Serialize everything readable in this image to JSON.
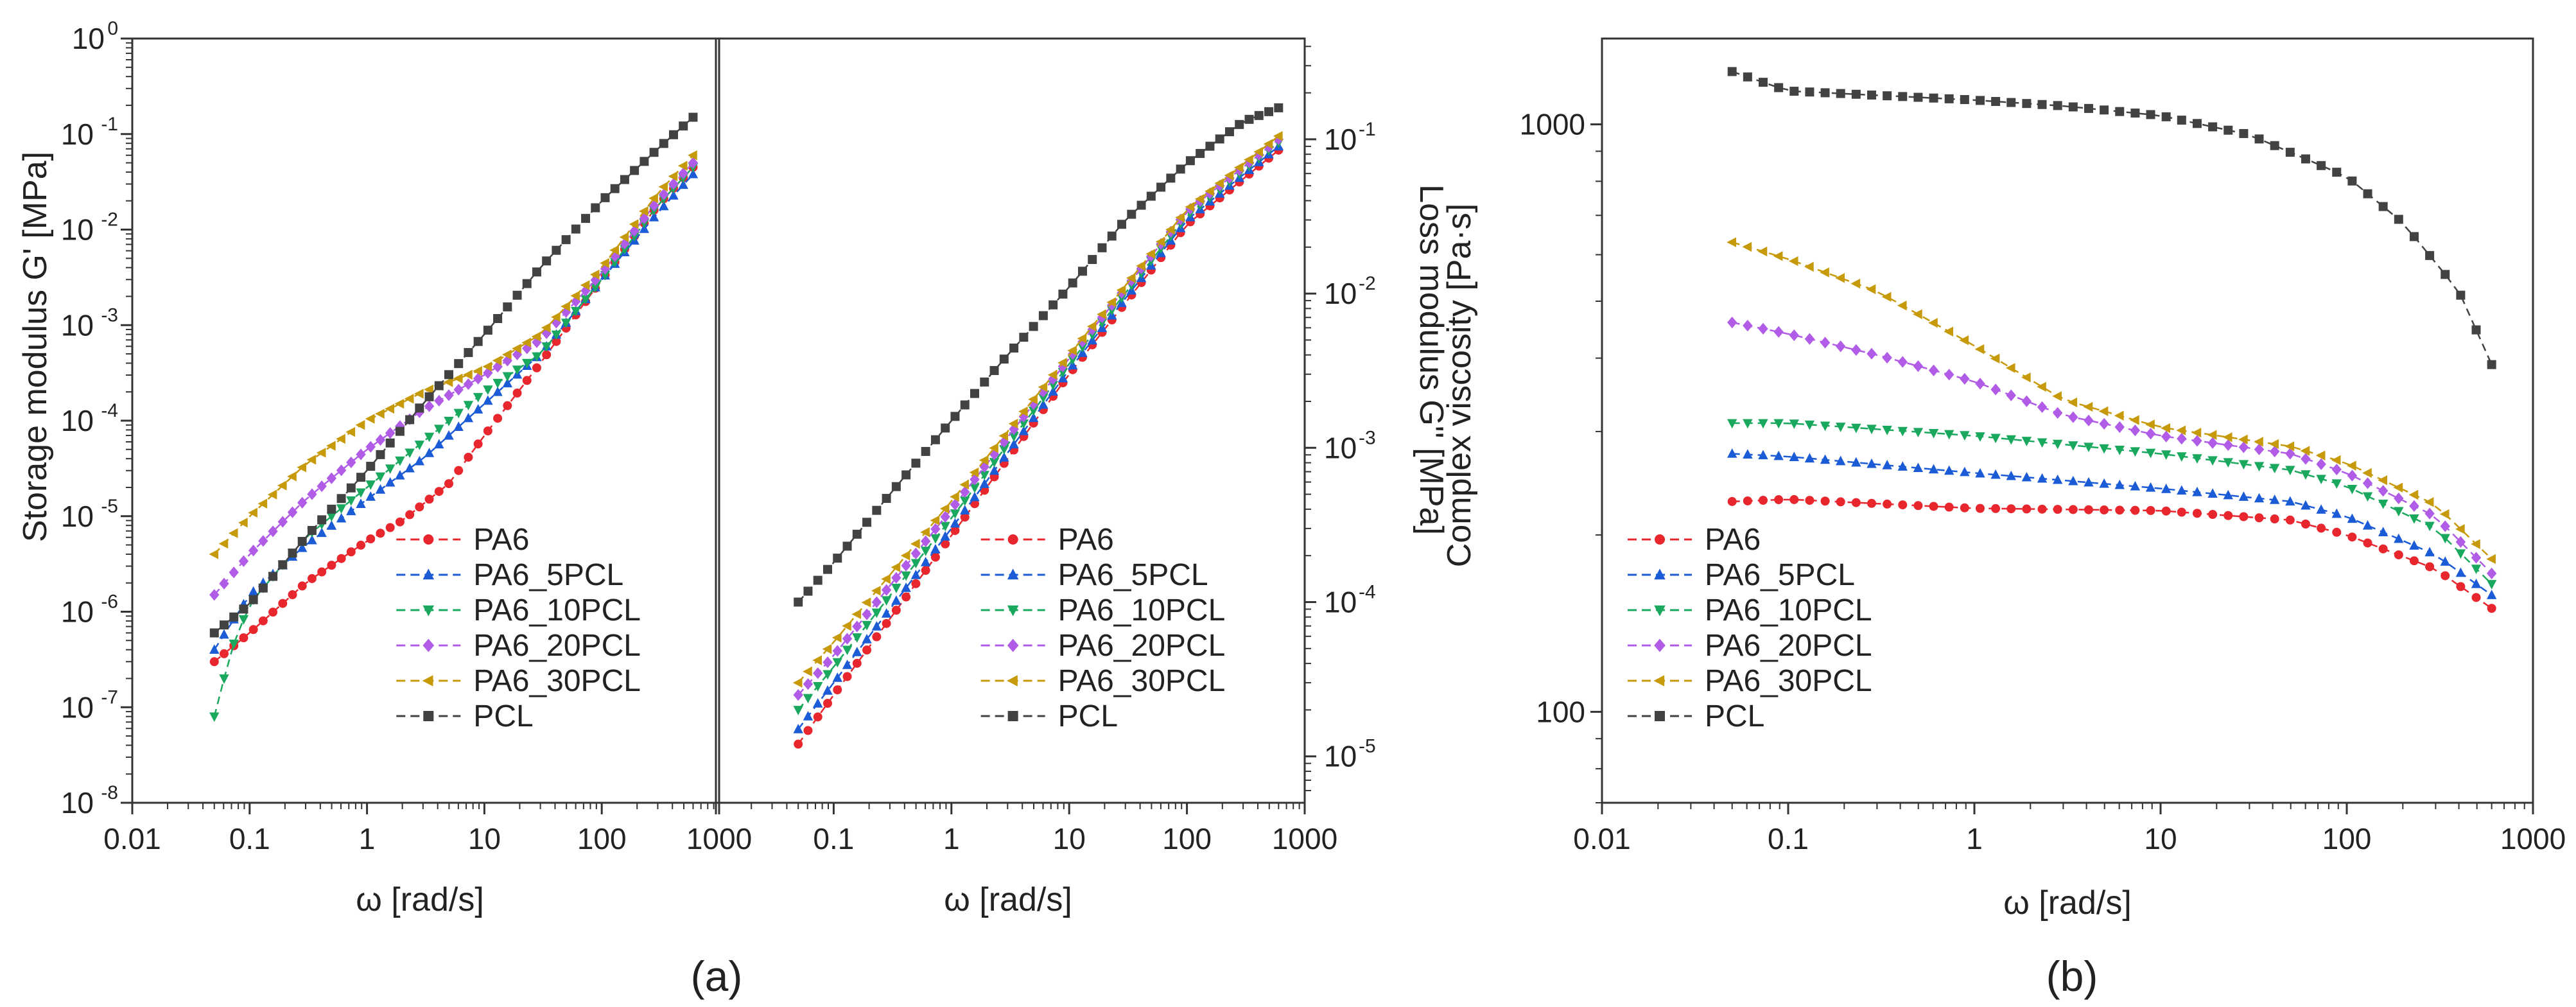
{
  "figure": {
    "panel_a_label": "(a)",
    "panel_b_label": "(b)"
  },
  "colors": {
    "PA6": "#e8262e",
    "PA6_5PCL": "#1c5bd6",
    "PA6_10PCL": "#1aa85e",
    "PA6_20PCL": "#b05ce6",
    "PA6_30PCL": "#c79a0c",
    "PCL": "#424242"
  },
  "chart_data": [
    {
      "id": "a-left",
      "type": "line",
      "title": "",
      "xlabel": "ω [rad/s]",
      "ylabel": "Storage modulus G' [MPa]",
      "xscale": "log",
      "yscale": "log",
      "xlim": [
        0.01,
        1000
      ],
      "ylim": [
        1e-08,
        1
      ],
      "x_ticks": [
        "0.01",
        "0.1",
        "1",
        "10",
        "100",
        "1000"
      ],
      "y_ticks": [
        {
          "base": "10",
          "exp": "-8"
        },
        {
          "base": "10",
          "exp": "-7"
        },
        {
          "base": "10",
          "exp": "-6"
        },
        {
          "base": "10",
          "exp": "-5"
        },
        {
          "base": "10",
          "exp": "-4"
        },
        {
          "base": "10",
          "exp": "-3"
        },
        {
          "base": "10",
          "exp": "-2"
        },
        {
          "base": "10",
          "exp": "-1"
        },
        {
          "base": "10",
          "exp": "0"
        }
      ],
      "legend": [
        "PA6",
        "PA6_5PCL",
        "PA6_10PCL",
        "PA6_20PCL",
        "PA6_30PCL",
        "PCL"
      ],
      "legend_loc": "bottom-right",
      "series": [
        {
          "name": "PA6",
          "x": [
            0.05,
            0.1,
            0.3,
            1,
            2,
            5,
            10,
            30,
            100,
            300,
            600
          ],
          "y": [
            3e-07,
            6e-07,
            2e-06,
            5.5e-06,
            9e-06,
            2.2e-05,
            7e-05,
            0.0004,
            0.003,
            0.018,
            0.045
          ]
        },
        {
          "name": "PA6_5PCL",
          "x": [
            0.05,
            0.1,
            0.3,
            1,
            3,
            10,
            30,
            100,
            300,
            600
          ],
          "y": [
            4e-07,
            1.5e-06,
            5e-06,
            1.5e-05,
            4e-05,
            0.00015,
            0.0005,
            0.003,
            0.015,
            0.038
          ]
        },
        {
          "name": "PA6_10PCL",
          "x": [
            0.05,
            0.07,
            0.1,
            0.3,
            1,
            3,
            10,
            30,
            100,
            300,
            600
          ],
          "y": [
            8e-08,
            4e-07,
            1.2e-06,
            6e-06,
            2e-05,
            6e-05,
            0.0002,
            0.0005,
            0.003,
            0.018,
            0.045
          ]
        },
        {
          "name": "PA6_20PCL",
          "x": [
            0.05,
            0.1,
            0.3,
            1,
            3,
            10,
            30,
            100,
            300,
            600
          ],
          "y": [
            1.5e-06,
            4e-06,
            1.5e-05,
            5e-05,
            0.00013,
            0.0003,
            0.0007,
            0.0035,
            0.02,
            0.05
          ]
        },
        {
          "name": "PA6_30PCL",
          "x": [
            0.05,
            0.1,
            0.3,
            1,
            3,
            10,
            30,
            100,
            300,
            600
          ],
          "y": [
            4e-06,
            1e-05,
            3.5e-05,
            0.0001,
            0.0002,
            0.00035,
            0.0008,
            0.004,
            0.024,
            0.06
          ]
        },
        {
          "name": "PCL",
          "x": [
            0.05,
            0.1,
            0.3,
            1,
            3,
            10,
            30,
            100,
            300,
            600
          ],
          "y": [
            6e-07,
            1.2e-06,
            6e-06,
            3e-05,
            0.00015,
            0.0008,
            0.004,
            0.02,
            0.07,
            0.15
          ]
        }
      ]
    },
    {
      "id": "a-right",
      "type": "line",
      "title": "",
      "xlabel": "ω [rad/s]",
      "ylabel": "Loss modulus G'' [MPa]",
      "xscale": "log",
      "yscale": "log",
      "xlim": [
        0.01,
        1000
      ],
      "ylim": [
        5e-06,
        0.45
      ],
      "x_ticks": [
        "0.1",
        "1",
        "10",
        "100",
        "1000"
      ],
      "y_ticks": [
        {
          "base": "10",
          "exp": "-5"
        },
        {
          "base": "10",
          "exp": "-4"
        },
        {
          "base": "10",
          "exp": "-3"
        },
        {
          "base": "10",
          "exp": "-2"
        },
        {
          "base": "10",
          "exp": "-1"
        }
      ],
      "legend": [
        "PA6",
        "PA6_5PCL",
        "PA6_10PCL",
        "PA6_20PCL",
        "PA6_30PCL",
        "PCL"
      ],
      "legend_loc": "bottom-right",
      "series": [
        {
          "name": "PA6",
          "x": [
            0.05,
            0.1,
            1,
            10,
            100,
            600
          ],
          "y": [
            1.2e-05,
            2.5e-05,
            0.00027,
            0.003,
            0.028,
            0.085
          ]
        },
        {
          "name": "PA6_5PCL",
          "x": [
            0.05,
            0.1,
            1,
            10,
            100,
            600
          ],
          "y": [
            1.5e-05,
            3e-05,
            0.0003,
            0.0032,
            0.03,
            0.09
          ]
        },
        {
          "name": "PA6_10PCL",
          "x": [
            0.05,
            0.1,
            1,
            10,
            100,
            600
          ],
          "y": [
            2e-05,
            3.8e-05,
            0.00035,
            0.0035,
            0.032,
            0.095
          ]
        },
        {
          "name": "PA6_20PCL",
          "x": [
            0.05,
            0.1,
            1,
            10,
            100,
            600
          ],
          "y": [
            2.5e-05,
            4.5e-05,
            0.0004,
            0.0038,
            0.034,
            0.1
          ]
        },
        {
          "name": "PA6_30PCL",
          "x": [
            0.05,
            0.1,
            1,
            10,
            100,
            600
          ],
          "y": [
            3e-05,
            5.5e-05,
            0.00045,
            0.004,
            0.035,
            0.105
          ]
        },
        {
          "name": "PCL",
          "x": [
            0.05,
            0.1,
            0.3,
            1,
            3,
            10,
            30,
            100,
            300,
            600
          ],
          "y": [
            0.0001,
            0.00018,
            0.0005,
            0.0015,
            0.004,
            0.011,
            0.03,
            0.07,
            0.13,
            0.16
          ]
        }
      ]
    },
    {
      "id": "b",
      "type": "line",
      "title": "",
      "xlabel": "ω [rad/s]",
      "ylabel": "Complex viscosity [Pa·s]",
      "xscale": "log",
      "yscale": "log",
      "xlim": [
        0.01,
        1000
      ],
      "ylim": [
        70,
        1400
      ],
      "x_ticks": [
        "0.01",
        "0.1",
        "1",
        "10",
        "100",
        "1000"
      ],
      "y_ticks": [
        "100",
        "1000"
      ],
      "legend": [
        "PA6",
        "PA6_5PCL",
        "PA6_10PCL",
        "PA6_20PCL",
        "PA6_30PCL",
        "PCL"
      ],
      "legend_loc": "bottom-left",
      "series": [
        {
          "name": "PA6",
          "x": [
            0.05,
            0.1,
            1,
            10,
            50,
            100,
            300,
            600
          ],
          "y": [
            228,
            230,
            222,
            220,
            212,
            200,
            175,
            150
          ]
        },
        {
          "name": "PA6_5PCL",
          "x": [
            0.05,
            0.1,
            1,
            10,
            50,
            100,
            300,
            600
          ],
          "y": [
            275,
            272,
            255,
            240,
            228,
            215,
            185,
            158
          ]
        },
        {
          "name": "PA6_10PCL",
          "x": [
            0.05,
            0.1,
            1,
            10,
            50,
            100,
            300,
            600
          ],
          "y": [
            310,
            310,
            295,
            275,
            258,
            242,
            205,
            165
          ]
        },
        {
          "name": "PA6_20PCL",
          "x": [
            0.05,
            0.1,
            0.3,
            1,
            3,
            10,
            50,
            100,
            300,
            600
          ],
          "y": [
            460,
            440,
            405,
            365,
            320,
            295,
            275,
            255,
            215,
            172
          ]
        },
        {
          "name": "PA6_30PCL",
          "x": [
            0.05,
            0.1,
            0.3,
            1,
            3,
            10,
            50,
            100,
            300,
            600
          ],
          "y": [
            630,
            590,
            520,
            420,
            340,
            305,
            283,
            265,
            225,
            182
          ]
        },
        {
          "name": "PCL",
          "x": [
            0.05,
            0.1,
            1,
            3,
            10,
            30,
            100,
            200,
            400,
            600
          ],
          "y": [
            1230,
            1140,
            1100,
            1075,
            1035,
            960,
            815,
            680,
            520,
            390
          ]
        }
      ]
    }
  ]
}
